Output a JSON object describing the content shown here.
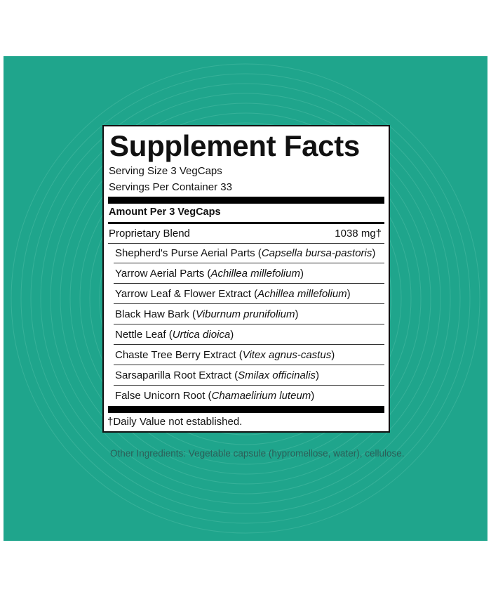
{
  "colors": {
    "background": "#1fa58c",
    "panel": "#ffffff",
    "text": "#111111"
  },
  "panel": {
    "title": "Supplement Facts",
    "serving_size": "Serving Size 3 VegCaps",
    "servings_per_container": "Servings Per Container 33",
    "amount_header": "Amount Per 3 VegCaps",
    "blend": {
      "name": "Proprietary Blend",
      "amount": "1038 mg†"
    },
    "ingredients": [
      {
        "name": "Shepherd's Purse Aerial Parts",
        "latin": "Capsella bursa-pastoris"
      },
      {
        "name": "Yarrow Aerial Parts",
        "latin": "Achillea millefolium"
      },
      {
        "name": "Yarrow Leaf & Flower Extract",
        "latin": "Achillea millefolium"
      },
      {
        "name": "Black Haw Bark",
        "latin": "Viburnum prunifolium"
      },
      {
        "name": "Nettle Leaf",
        "latin": "Urtica dioica"
      },
      {
        "name": "Chaste Tree Berry Extract",
        "latin": "Vitex agnus-castus"
      },
      {
        "name": "Sarsaparilla Root Extract",
        "latin": "Smilax officinalis"
      },
      {
        "name": "False Unicorn Root",
        "latin": "Chamaelirium luteum"
      }
    ],
    "footnote": "†Daily Value not established."
  },
  "other_ingredients": "Other Ingredients: Vegetable capsule (hypromellose, water), cellulose."
}
